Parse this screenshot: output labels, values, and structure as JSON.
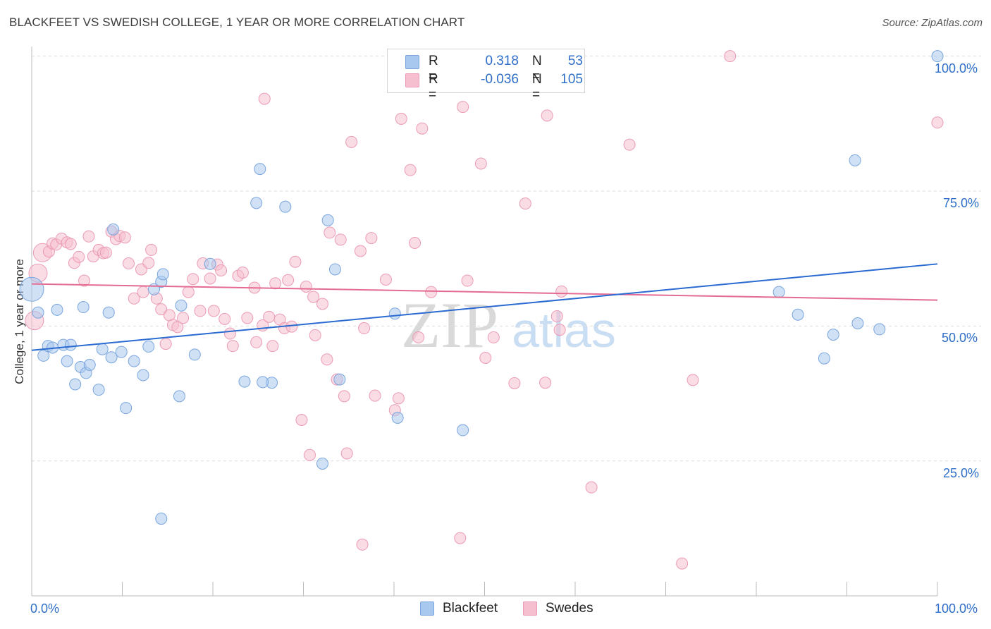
{
  "header": {
    "title": "BLACKFEET VS SWEDISH COLLEGE, 1 YEAR OR MORE CORRELATION CHART",
    "source": "Source: ZipAtlas.com"
  },
  "legend": {
    "blue": {
      "r_label": "R =",
      "r_value": "0.318",
      "n_label": "N =",
      "n_value": "53"
    },
    "pink": {
      "r_label": "R =",
      "r_value": "-0.036",
      "n_label": "N =",
      "n_value": "105"
    }
  },
  "bottom_legend": {
    "blue": "Blackfeet",
    "pink": "Swedes"
  },
  "axis_labels": {
    "y": "College, 1 year or more",
    "x_min": "0.0%",
    "x_max": "100.0%",
    "y_ticks": [
      "100.0%",
      "75.0%",
      "50.0%",
      "25.0%"
    ]
  },
  "watermark": {
    "zip": "ZIP",
    "atlas": "atlas"
  },
  "colors": {
    "blue_fill": "#a9c8ef",
    "blue_stroke": "#7aa6dd",
    "blue_line": "#2a6bd1",
    "pink_fill": "#f6bfd0",
    "pink_stroke": "#eb9bb5",
    "pink_line": "#e46c92",
    "tick_text": "#2f6fc9",
    "grid": "#dcdcdc"
  },
  "chart_data": {
    "type": "scatter",
    "title": "BLACKFEET VS SWEDISH COLLEGE, 1 YEAR OR MORE CORRELATION CHART",
    "xlabel": "",
    "ylabel": "College, 1 year or more",
    "xlim": [
      0,
      100
    ],
    "ylim": [
      0,
      101
    ],
    "grid": true,
    "legend_position": "top-center",
    "series": [
      {
        "name": "Blackfeet",
        "color": "#a9c8ef",
        "trend": [
          [
            0,
            45.5
          ],
          [
            100,
            61.5
          ]
        ],
        "points": [
          [
            0,
            56.8,
            3
          ],
          [
            0.7,
            52.5,
            1
          ],
          [
            1.3,
            44.5,
            1
          ],
          [
            1.8,
            46.3,
            1
          ],
          [
            2.3,
            46,
            1
          ],
          [
            2.8,
            53,
            1
          ],
          [
            3.5,
            46.5,
            1
          ],
          [
            3.9,
            43.5,
            1
          ],
          [
            4.3,
            46.5,
            1
          ],
          [
            4.8,
            39.2,
            1
          ],
          [
            5.4,
            42.4,
            1
          ],
          [
            5.7,
            53.5,
            1
          ],
          [
            6,
            41.3,
            1
          ],
          [
            6.4,
            42.8,
            1
          ],
          [
            7.4,
            38.2,
            1
          ],
          [
            7.8,
            45.7,
            1
          ],
          [
            8.5,
            52.5,
            1
          ],
          [
            8.8,
            44.2,
            1
          ],
          [
            9,
            67.9,
            1
          ],
          [
            9.9,
            45.2,
            1
          ],
          [
            10.4,
            34.8,
            1
          ],
          [
            11.3,
            43.5,
            1
          ],
          [
            12.3,
            40.9,
            1
          ],
          [
            12.9,
            46.2,
            1
          ],
          [
            13.5,
            56.8,
            1
          ],
          [
            14.3,
            58.2,
            1
          ],
          [
            14.5,
            59.6,
            1
          ],
          [
            16.3,
            37,
            1
          ],
          [
            16.5,
            53.8,
            1
          ],
          [
            18,
            44.7,
            1
          ],
          [
            19.7,
            61.5,
            1
          ],
          [
            23.5,
            39.7,
            1
          ],
          [
            26.5,
            39.5,
            1
          ],
          [
            24.8,
            72.8,
            1
          ],
          [
            25.2,
            79.1,
            1
          ],
          [
            25.5,
            39.6,
            1
          ],
          [
            14.3,
            14.3,
            1
          ],
          [
            28,
            72.1,
            1
          ],
          [
            32.7,
            69.6,
            1
          ],
          [
            33.5,
            60.5,
            1
          ],
          [
            34,
            40.1,
            1
          ],
          [
            32.1,
            24.5,
            1
          ],
          [
            40.1,
            52.3,
            1
          ],
          [
            40.4,
            33,
            1
          ],
          [
            47.6,
            30.7,
            1
          ],
          [
            82.5,
            56.3,
            1
          ],
          [
            84.6,
            52.1,
            1
          ],
          [
            87.5,
            44,
            1
          ],
          [
            88.5,
            48.4,
            1
          ],
          [
            90.9,
            80.7,
            1
          ],
          [
            91.2,
            50.5,
            1
          ],
          [
            93.6,
            49.4,
            1
          ],
          [
            100,
            100,
            1
          ]
        ]
      },
      {
        "name": "Swedes",
        "color": "#f6bfd0",
        "trend": [
          [
            0,
            57.8
          ],
          [
            100,
            54.8
          ]
        ],
        "points": [
          [
            0.3,
            51,
            2
          ],
          [
            0.7,
            59.8,
            2
          ],
          [
            1.2,
            63.6,
            2
          ],
          [
            1.9,
            63.8,
            1
          ],
          [
            2.3,
            65.3,
            1
          ],
          [
            2.7,
            65.1,
            1
          ],
          [
            3.3,
            66.2,
            1
          ],
          [
            3.9,
            65.5,
            1
          ],
          [
            4.3,
            65.2,
            1
          ],
          [
            4.7,
            61.7,
            1
          ],
          [
            5.2,
            62.8,
            1
          ],
          [
            5.8,
            58.4,
            1
          ],
          [
            6.3,
            66.6,
            1
          ],
          [
            6.8,
            62.9,
            1
          ],
          [
            7.4,
            64.1,
            1
          ],
          [
            7.9,
            63.5,
            1
          ],
          [
            8.2,
            63.6,
            1
          ],
          [
            8.8,
            67.5,
            1
          ],
          [
            9.3,
            66.1,
            1
          ],
          [
            9.7,
            66.7,
            1
          ],
          [
            10.3,
            66.4,
            1
          ],
          [
            10.7,
            61.6,
            1
          ],
          [
            11.3,
            55.1,
            1
          ],
          [
            12.1,
            60.5,
            1
          ],
          [
            12.3,
            56.3,
            1
          ],
          [
            12.9,
            61.7,
            1
          ],
          [
            13.2,
            64.1,
            1
          ],
          [
            13.8,
            55.1,
            1
          ],
          [
            14.3,
            53.1,
            1
          ],
          [
            14.8,
            46.7,
            1
          ],
          [
            15.2,
            52,
            1
          ],
          [
            15.6,
            50.2,
            1
          ],
          [
            16.1,
            49.8,
            1
          ],
          [
            16.7,
            51.5,
            1
          ],
          [
            17.3,
            56.3,
            1
          ],
          [
            17.8,
            58.7,
            1
          ],
          [
            18.6,
            52.8,
            1
          ],
          [
            18.9,
            61.6,
            1
          ],
          [
            19.7,
            58.8,
            1
          ],
          [
            20.1,
            52.8,
            1
          ],
          [
            20.5,
            61.4,
            1
          ],
          [
            20.9,
            60.3,
            1
          ],
          [
            21.3,
            51.3,
            1
          ],
          [
            21.9,
            48.6,
            1
          ],
          [
            22.2,
            46.3,
            1
          ],
          [
            22.8,
            59.3,
            1
          ],
          [
            23.3,
            59.9,
            1
          ],
          [
            23.8,
            51.5,
            1
          ],
          [
            24.6,
            57.1,
            1
          ],
          [
            24.8,
            47,
            1
          ],
          [
            25.5,
            50.1,
            1
          ],
          [
            25.7,
            92.1,
            1
          ],
          [
            26.2,
            51.7,
            1
          ],
          [
            26.6,
            46.3,
            1
          ],
          [
            26.9,
            57.9,
            1
          ],
          [
            27.4,
            51.2,
            1
          ],
          [
            27.9,
            49.6,
            1
          ],
          [
            28.3,
            58.5,
            1
          ],
          [
            28.7,
            49.9,
            1
          ],
          [
            29.1,
            61.9,
            1
          ],
          [
            29.8,
            32.6,
            1
          ],
          [
            30.3,
            57.3,
            1
          ],
          [
            30.7,
            26.1,
            1
          ],
          [
            31.1,
            55.4,
            1
          ],
          [
            31.3,
            48.3,
            1
          ],
          [
            32.1,
            54.1,
            1
          ],
          [
            32.6,
            43.8,
            1
          ],
          [
            32.9,
            67.3,
            1
          ],
          [
            33.7,
            40.1,
            1
          ],
          [
            34.1,
            66,
            1
          ],
          [
            34.5,
            37,
            1
          ],
          [
            34.8,
            26.4,
            1
          ],
          [
            35.3,
            84.1,
            1
          ],
          [
            36.3,
            63.9,
            1
          ],
          [
            36.5,
            9.5,
            1
          ],
          [
            36.7,
            49.6,
            1
          ],
          [
            37.5,
            66.3,
            1
          ],
          [
            37.9,
            37.1,
            1
          ],
          [
            39.1,
            58.6,
            1
          ],
          [
            40.1,
            34.4,
            1
          ],
          [
            40.5,
            36.6,
            1
          ],
          [
            40.8,
            88.4,
            1
          ],
          [
            41.8,
            78.9,
            1
          ],
          [
            42.3,
            65.4,
            1
          ],
          [
            42.7,
            47.9,
            1
          ],
          [
            43.1,
            86.6,
            1
          ],
          [
            44.1,
            56.3,
            1
          ],
          [
            45.8,
            100,
            1
          ],
          [
            47.3,
            10.7,
            1
          ],
          [
            47.6,
            90.6,
            1
          ],
          [
            48.1,
            58.4,
            1
          ],
          [
            49.6,
            80.1,
            1
          ],
          [
            50.1,
            44.1,
            1
          ],
          [
            51,
            47.9,
            1
          ],
          [
            53.3,
            39.4,
            1
          ],
          [
            54.5,
            72.7,
            1
          ],
          [
            56.7,
            39.5,
            1
          ],
          [
            56.9,
            89,
            1
          ],
          [
            58,
            51.8,
            1
          ],
          [
            58.3,
            49.3,
            1
          ],
          [
            58.5,
            56.4,
            1
          ],
          [
            61.8,
            20.1,
            1
          ],
          [
            66,
            83.6,
            1
          ],
          [
            71.8,
            6,
            1
          ],
          [
            73,
            40,
            1
          ],
          [
            77.1,
            100,
            1
          ],
          [
            100,
            87.7,
            1
          ]
        ]
      }
    ]
  }
}
